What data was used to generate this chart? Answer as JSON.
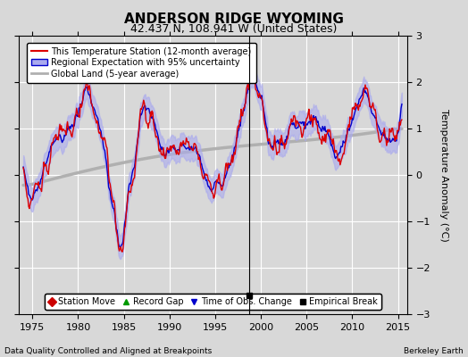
{
  "title": "ANDERSON RIDGE WYOMING",
  "subtitle": "42.437 N, 108.941 W (United States)",
  "ylabel": "Temperature Anomaly (°C)",
  "xlabel_left": "Data Quality Controlled and Aligned at Breakpoints",
  "xlabel_right": "Berkeley Earth",
  "xlim": [
    1973.5,
    2016.0
  ],
  "ylim": [
    -3.0,
    3.0
  ],
  "yticks": [
    -3,
    -2,
    -1,
    0,
    1,
    2,
    3
  ],
  "xticks": [
    1975,
    1980,
    1985,
    1990,
    1995,
    2000,
    2005,
    2010,
    2015
  ],
  "background_color": "#d8d8d8",
  "plot_bg_color": "#d8d8d8",
  "grid_color": "white",
  "station_color": "#dd0000",
  "regional_color": "#0000cc",
  "regional_fill_color": "#aaaaee",
  "global_color": "#b0b0b0",
  "empirical_break_year": 1998.7,
  "empirical_break_y": -2.6,
  "vertical_line_year": 1998.7,
  "legend_items": [
    {
      "label": "This Temperature Station (12-month average)",
      "color": "#dd0000",
      "lw": 1.5
    },
    {
      "label": "Regional Expectation with 95% uncertainty",
      "color": "#0000cc",
      "fill": "#aaaaee"
    },
    {
      "label": "Global Land (5-year average)",
      "color": "#b0b0b0",
      "lw": 2.0
    }
  ],
  "marker_items": [
    {
      "label": "Station Move",
      "color": "#cc0000",
      "marker": "D"
    },
    {
      "label": "Record Gap",
      "color": "#009900",
      "marker": "^"
    },
    {
      "label": "Time of Obs. Change",
      "color": "#0000cc",
      "marker": "v"
    },
    {
      "label": "Empirical Break",
      "color": "#000000",
      "marker": "s"
    }
  ]
}
